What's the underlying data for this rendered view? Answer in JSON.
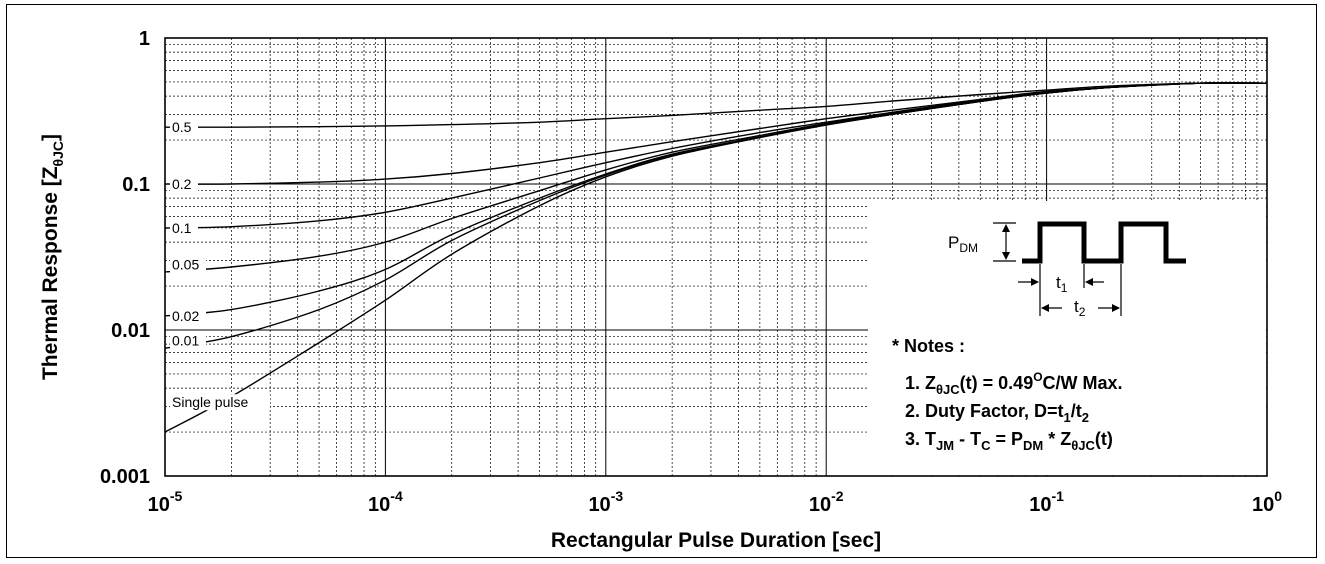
{
  "chart_data": {
    "type": "line",
    "title": "",
    "xlabel": "Rectangular Pulse Duration [sec]",
    "ylabel": {
      "main": "Thermal Response [Z",
      "sub": "θJC",
      "close": "]"
    },
    "x_scale": "log",
    "y_scale": "log",
    "xlim": [
      1e-05,
      1
    ],
    "ylim": [
      0.001,
      1
    ],
    "grid": true,
    "x_ticks": [
      {
        "value": 1e-05,
        "base": "10",
        "exp": "-5"
      },
      {
        "value": 0.0001,
        "base": "10",
        "exp": "-4"
      },
      {
        "value": 0.001,
        "base": "10",
        "exp": "-3"
      },
      {
        "value": 0.01,
        "base": "10",
        "exp": "-2"
      },
      {
        "value": 0.1,
        "base": "10",
        "exp": "-1"
      },
      {
        "value": 1,
        "base": "10",
        "exp": "0"
      }
    ],
    "y_ticks": [
      {
        "value": 1,
        "label": "1"
      },
      {
        "value": 0.1,
        "label": "0.1"
      },
      {
        "value": 0.01,
        "label": "0.01"
      },
      {
        "value": 0.001,
        "label": "0.001"
      }
    ],
    "x": [
      1e-05,
      2e-05,
      5e-05,
      0.0001,
      0.0002,
      0.0005,
      0.001,
      0.002,
      0.005,
      0.01,
      0.02,
      0.05,
      0.1,
      0.2,
      0.5,
      1
    ],
    "series": [
      {
        "name": "0.5",
        "values": [
          0.245,
          0.245,
          0.247,
          0.25,
          0.255,
          0.265,
          0.28,
          0.295,
          0.32,
          0.34,
          0.37,
          0.41,
          0.44,
          0.47,
          0.49,
          0.49
        ]
      },
      {
        "name": "0.2",
        "values": [
          0.1,
          0.1,
          0.103,
          0.108,
          0.118,
          0.14,
          0.165,
          0.195,
          0.24,
          0.28,
          0.32,
          0.38,
          0.43,
          0.46,
          0.49,
          0.49
        ]
      },
      {
        "name": "0.1",
        "values": [
          0.05,
          0.051,
          0.056,
          0.064,
          0.08,
          0.11,
          0.14,
          0.175,
          0.225,
          0.265,
          0.31,
          0.375,
          0.42,
          0.46,
          0.49,
          0.49
        ]
      },
      {
        "name": "0.05",
        "values": [
          0.025,
          0.027,
          0.032,
          0.04,
          0.058,
          0.09,
          0.125,
          0.165,
          0.215,
          0.26,
          0.305,
          0.37,
          0.42,
          0.46,
          0.49,
          0.49
        ]
      },
      {
        "name": "0.02",
        "values": [
          0.0125,
          0.0138,
          0.0185,
          0.026,
          0.045,
          0.08,
          0.117,
          0.16,
          0.21,
          0.255,
          0.3,
          0.368,
          0.42,
          0.46,
          0.49,
          0.49
        ]
      },
      {
        "name": "0.01",
        "values": [
          0.0075,
          0.009,
          0.0138,
          0.022,
          0.041,
          0.077,
          0.115,
          0.158,
          0.21,
          0.255,
          0.3,
          0.368,
          0.42,
          0.46,
          0.49,
          0.49
        ]
      },
      {
        "name": "Single pulse",
        "values": [
          0.002,
          0.0035,
          0.0082,
          0.016,
          0.033,
          0.071,
          0.112,
          0.155,
          0.208,
          0.253,
          0.3,
          0.368,
          0.42,
          0.46,
          0.49,
          0.49
        ]
      }
    ],
    "curve_labels": [
      {
        "text": "0.5",
        "x": 1e-05,
        "y": 0.245
      },
      {
        "text": "0.2",
        "x": 1e-05,
        "y": 0.1
      },
      {
        "text": "0.1",
        "x": 1e-05,
        "y": 0.05
      },
      {
        "text": "0.05",
        "x": 1e-05,
        "y": 0.028
      },
      {
        "text": "0.02",
        "x": 1e-05,
        "y": 0.0125
      },
      {
        "text": "0.01",
        "x": 1e-05,
        "y": 0.0085
      },
      {
        "text": "Single pulse",
        "x": 1e-05,
        "y": 0.0032
      }
    ]
  },
  "inset": {
    "pulse": {
      "pdm": "P",
      "pdm_sub": "DM",
      "t1": "t",
      "t1_sub": "1",
      "t2": "t",
      "t2_sub": "2"
    },
    "notes_title": "* Notes :",
    "notes": [
      [
        {
          "t": "1. Z"
        },
        {
          "t": "θJC",
          "s": "sub"
        },
        {
          "t": "(t) = 0.49"
        },
        {
          "t": "O",
          "s": "sup"
        },
        {
          "t": "C/W Max."
        }
      ],
      [
        {
          "t": "2. Duty Factor, D=t"
        },
        {
          "t": "1",
          "s": "sub"
        },
        {
          "t": "/t"
        },
        {
          "t": "2",
          "s": "sub"
        }
      ],
      [
        {
          "t": "3. T"
        },
        {
          "t": "JM",
          "s": "sub"
        },
        {
          "t": " - T"
        },
        {
          "t": "C",
          "s": "sub"
        },
        {
          "t": " = P"
        },
        {
          "t": "DM",
          "s": "sub"
        },
        {
          "t": " * Z"
        },
        {
          "t": "θJC",
          "s": "sub"
        },
        {
          "t": "(t)"
        }
      ]
    ]
  }
}
